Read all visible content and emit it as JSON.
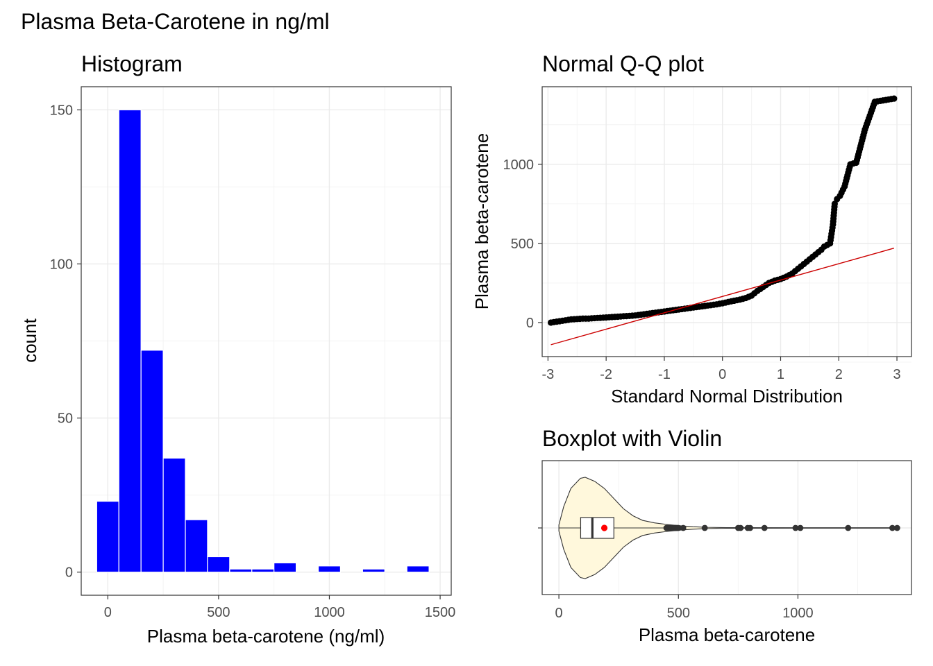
{
  "figure": {
    "title": "Plasma Beta-Carotene in ng/ml"
  },
  "colors": {
    "bar_fill": "#0000ff",
    "bar_outline": "#ffffff",
    "qq_line": "#cc0000",
    "point": "#000000",
    "violin_fill": "#fff8dc",
    "mean_point": "#ff0000",
    "outlier": "#333333"
  },
  "chart_data": [
    {
      "type": "bar",
      "title": "Histogram",
      "xlabel": "Plasma beta-carotene (ng/ml)",
      "ylabel": "count",
      "xlim": [
        -120,
        1550
      ],
      "ylim": [
        -7.5,
        157.5
      ],
      "x_ticks": [
        0,
        500,
        1000,
        1500
      ],
      "y_ticks": [
        0,
        50,
        100,
        150
      ],
      "bin_width": 100,
      "bin_centers": [
        0,
        100,
        200,
        300,
        400,
        500,
        600,
        700,
        800,
        900,
        1000,
        1100,
        1200,
        1300,
        1400
      ],
      "values": [
        23,
        150,
        72,
        37,
        17,
        5,
        1,
        1,
        3,
        0,
        2,
        0,
        1,
        0,
        2
      ],
      "grid": true
    },
    {
      "type": "scatter",
      "title": "Normal Q-Q plot",
      "xlabel": "Standard Normal Distribution",
      "ylabel": "Plasma beta-carotene",
      "xlim": [
        -3.1,
        3.25
      ],
      "ylim": [
        -215,
        1490
      ],
      "x_ticks": [
        -3,
        -2,
        -1,
        0,
        1,
        2,
        3
      ],
      "y_ticks": [
        0,
        500,
        1000
      ],
      "reference_line": {
        "x": [
          -2.95,
          2.95
        ],
        "y": [
          -140,
          470
        ]
      },
      "points": [
        [
          -2.95,
          0
        ],
        [
          -2.6,
          20
        ],
        [
          -2.4,
          25
        ],
        [
          -2.3,
          25
        ],
        [
          -2.2,
          28
        ],
        [
          -2.1,
          30
        ],
        [
          -2.0,
          32
        ],
        [
          -1.9,
          35
        ],
        [
          -1.8,
          37
        ],
        [
          -1.7,
          40
        ],
        [
          -1.6,
          42
        ],
        [
          -1.5,
          45
        ],
        [
          -1.4,
          50
        ],
        [
          -1.3,
          55
        ],
        [
          -1.2,
          60
        ],
        [
          -1.1,
          65
        ],
        [
          -1.0,
          70
        ],
        [
          -0.9,
          75
        ],
        [
          -0.8,
          80
        ],
        [
          -0.7,
          85
        ],
        [
          -0.6,
          90
        ],
        [
          -0.5,
          95
        ],
        [
          -0.4,
          100
        ],
        [
          -0.3,
          105
        ],
        [
          -0.2,
          110
        ],
        [
          -0.1,
          115
        ],
        [
          0.0,
          122
        ],
        [
          0.1,
          130
        ],
        [
          0.2,
          138
        ],
        [
          0.3,
          145
        ],
        [
          0.4,
          155
        ],
        [
          0.5,
          170
        ],
        [
          0.6,
          200
        ],
        [
          0.7,
          225
        ],
        [
          0.8,
          250
        ],
        [
          0.9,
          265
        ],
        [
          1.0,
          275
        ],
        [
          1.1,
          290
        ],
        [
          1.2,
          310
        ],
        [
          1.3,
          340
        ],
        [
          1.4,
          370
        ],
        [
          1.5,
          400
        ],
        [
          1.6,
          430
        ],
        [
          1.7,
          460
        ],
        [
          1.75,
          480
        ],
        [
          1.8,
          490
        ],
        [
          1.85,
          500
        ],
        [
          1.9,
          620
        ],
        [
          1.93,
          750
        ],
        [
          1.97,
          780
        ],
        [
          2.02,
          800
        ],
        [
          2.1,
          860
        ],
        [
          2.2,
          1000
        ],
        [
          2.3,
          1010
        ],
        [
          2.45,
          1220
        ],
        [
          2.62,
          1395
        ],
        [
          2.95,
          1415
        ]
      ],
      "grid": true
    },
    {
      "type": "boxplot",
      "title": "Boxplot with Violin",
      "xlabel": "Plasma beta-carotene",
      "ylabel": "",
      "xlim": [
        -70,
        1475
      ],
      "x_ticks": [
        0,
        500,
        1000
      ],
      "box": {
        "min": 0,
        "q1": 91,
        "median": 140,
        "q3": 230,
        "mean": 190
      },
      "violin_density": [
        [
          0,
          0.06
        ],
        [
          20,
          0.42
        ],
        [
          50,
          0.78
        ],
        [
          90,
          0.98
        ],
        [
          110,
          1.0
        ],
        [
          150,
          0.92
        ],
        [
          190,
          0.78
        ],
        [
          230,
          0.58
        ],
        [
          270,
          0.38
        ],
        [
          310,
          0.24
        ],
        [
          350,
          0.15
        ],
        [
          400,
          0.1
        ],
        [
          450,
          0.07
        ],
        [
          500,
          0.045
        ],
        [
          560,
          0.025
        ],
        [
          620,
          0.012
        ],
        [
          700,
          0.006
        ],
        [
          1000,
          0.004
        ],
        [
          1415,
          0.004
        ]
      ],
      "outliers": [
        450,
        455,
        460,
        465,
        470,
        475,
        480,
        485,
        490,
        495,
        500,
        520,
        610,
        750,
        760,
        790,
        800,
        860,
        990,
        1010,
        1210,
        1395,
        1415
      ],
      "grid": true
    }
  ]
}
